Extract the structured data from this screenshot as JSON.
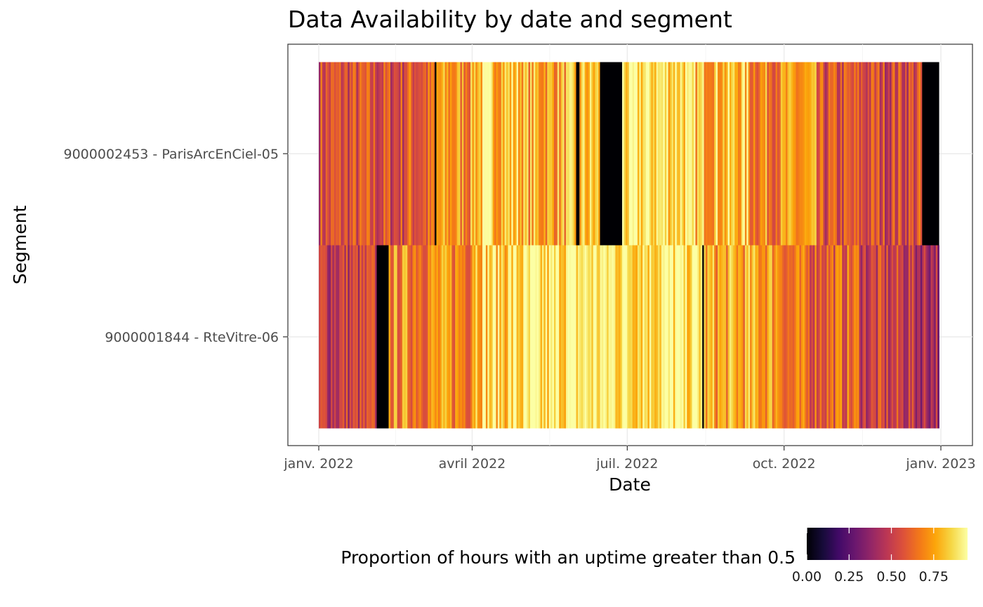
{
  "chart_data": {
    "type": "heatmap",
    "title": "Data Availability by date and segment",
    "xlabel": "Date",
    "ylabel": "Segment",
    "x_range": [
      "2022-01-01",
      "2022-12-31"
    ],
    "x_ticks": [
      {
        "date": "2022-01-01",
        "label": "janv. 2022"
      },
      {
        "date": "2022-04-01",
        "label": "avril 2022"
      },
      {
        "date": "2022-07-01",
        "label": "juil. 2022"
      },
      {
        "date": "2022-10-01",
        "label": "oct. 2022"
      },
      {
        "date": "2023-01-01",
        "label": "janv. 2023"
      }
    ],
    "colorscale": "inferno",
    "value_range": [
      0,
      0.95
    ],
    "grid": true,
    "legend_position": "bottom-right",
    "legend": {
      "title": "Proportion of hours with an uptime greater than 0.5",
      "ticks": [
        {
          "value": 0.0,
          "label": "0.00"
        },
        {
          "value": 0.25,
          "label": "0.25"
        },
        {
          "value": 0.5,
          "label": "0.50"
        },
        {
          "value": 0.75,
          "label": "0.75"
        }
      ]
    },
    "series": [
      {
        "name": "9000002453 - ParisArcEnCiel-05",
        "segments": [
          {
            "start": "2022-01-01",
            "end": "2022-02-20",
            "value": 0.55
          },
          {
            "start": "2022-02-20",
            "end": "2022-03-10",
            "value": 0.6
          },
          {
            "start": "2022-03-10",
            "end": "2022-03-11",
            "value": 0.0
          },
          {
            "start": "2022-03-11",
            "end": "2022-04-01",
            "value": 0.72
          },
          {
            "start": "2022-04-01",
            "end": "2022-05-01",
            "value": 0.82
          },
          {
            "start": "2022-05-01",
            "end": "2022-06-01",
            "value": 0.76
          },
          {
            "start": "2022-06-01",
            "end": "2022-06-03",
            "value": 0.0
          },
          {
            "start": "2022-06-03",
            "end": "2022-06-15",
            "value": 0.8
          },
          {
            "start": "2022-06-15",
            "end": "2022-06-28",
            "value": 0.0
          },
          {
            "start": "2022-06-28",
            "end": "2022-08-05",
            "value": 0.88
          },
          {
            "start": "2022-08-05",
            "end": "2022-09-10",
            "value": 0.8
          },
          {
            "start": "2022-09-10",
            "end": "2022-10-20",
            "value": 0.7
          },
          {
            "start": "2022-10-20",
            "end": "2022-12-21",
            "value": 0.55
          },
          {
            "start": "2022-12-21",
            "end": "2022-12-31",
            "value": 0.0
          }
        ]
      },
      {
        "name": "9000001844 - RteVitre-06",
        "segments": [
          {
            "start": "2022-01-01",
            "end": "2022-02-04",
            "value": 0.5
          },
          {
            "start": "2022-02-04",
            "end": "2022-02-11",
            "value": 0.0
          },
          {
            "start": "2022-02-11",
            "end": "2022-04-01",
            "value": 0.7
          },
          {
            "start": "2022-04-01",
            "end": "2022-05-20",
            "value": 0.85
          },
          {
            "start": "2022-05-20",
            "end": "2022-08-14",
            "value": 0.9
          },
          {
            "start": "2022-08-14",
            "end": "2022-08-15",
            "value": 0.0
          },
          {
            "start": "2022-08-15",
            "end": "2022-10-01",
            "value": 0.75
          },
          {
            "start": "2022-10-01",
            "end": "2022-11-15",
            "value": 0.62
          },
          {
            "start": "2022-11-15",
            "end": "2022-12-15",
            "value": 0.5
          },
          {
            "start": "2022-12-15",
            "end": "2022-12-31",
            "value": 0.45
          }
        ]
      }
    ]
  }
}
